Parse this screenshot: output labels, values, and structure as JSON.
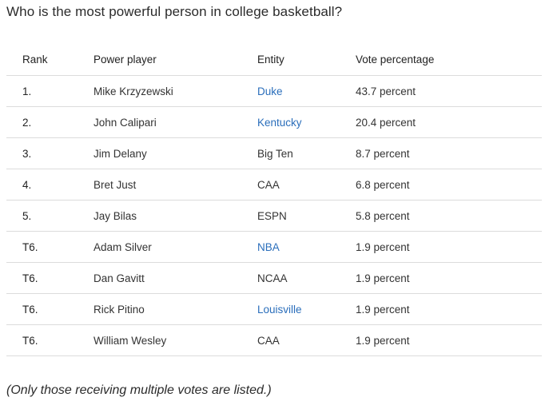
{
  "heading": "Who is the most powerful person in college basketball?",
  "table": {
    "headers": {
      "rank": "Rank",
      "player": "Power player",
      "entity": "Entity",
      "vote": "Vote percentage"
    },
    "rows": [
      {
        "rank": "1.",
        "player": "Mike Krzyzewski",
        "entity": "Duke",
        "entity_link": true,
        "vote": "43.7 percent"
      },
      {
        "rank": "2.",
        "player": "John Calipari",
        "entity": "Kentucky",
        "entity_link": true,
        "vote": "20.4 percent"
      },
      {
        "rank": "3.",
        "player": "Jim Delany",
        "entity": "Big Ten",
        "entity_link": false,
        "vote": "8.7 percent"
      },
      {
        "rank": "4.",
        "player": "Bret Just",
        "entity": "CAA",
        "entity_link": false,
        "vote": "6.8 percent"
      },
      {
        "rank": "5.",
        "player": "Jay Bilas",
        "entity": "ESPN",
        "entity_link": false,
        "vote": "5.8 percent"
      },
      {
        "rank": "T6.",
        "player": "Adam Silver",
        "entity": "NBA",
        "entity_link": true,
        "vote": "1.9 percent"
      },
      {
        "rank": "T6.",
        "player": "Dan Gavitt",
        "entity": "NCAA",
        "entity_link": false,
        "vote": "1.9 percent"
      },
      {
        "rank": "T6.",
        "player": "Rick Pitino",
        "entity": "Louisville",
        "entity_link": true,
        "vote": "1.9 percent"
      },
      {
        "rank": "T6.",
        "player": "William Wesley",
        "entity": "CAA",
        "entity_link": false,
        "vote": "1.9 percent"
      }
    ]
  },
  "footnote": "(Only those receiving multiple votes are listed.)",
  "colors": {
    "link": "#2a6ebb",
    "divider": "#dcdcdc",
    "text": "#333333"
  }
}
